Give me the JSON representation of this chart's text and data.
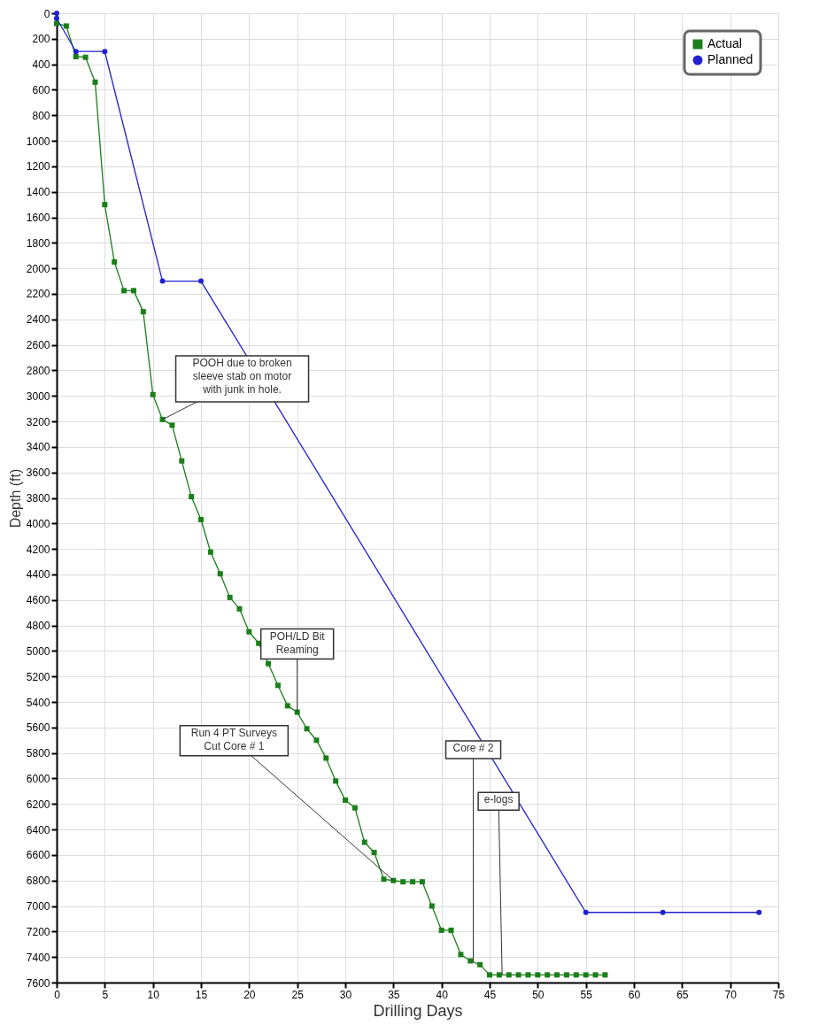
{
  "chart_data": {
    "type": "line",
    "xlabel": "Drilling Days",
    "ylabel": "Depth (ft)",
    "xlim": [
      0,
      75
    ],
    "xticks": [
      0,
      5,
      10,
      15,
      20,
      25,
      30,
      35,
      40,
      45,
      50,
      55,
      60,
      65,
      70,
      75
    ],
    "ylim": [
      7600,
      0
    ],
    "yticks": [
      0,
      200,
      400,
      600,
      800,
      1000,
      1200,
      1400,
      1600,
      1800,
      2000,
      2200,
      2400,
      2600,
      2800,
      3000,
      3200,
      3400,
      3600,
      3800,
      4000,
      4200,
      4400,
      4600,
      4800,
      5000,
      5200,
      5400,
      5600,
      5800,
      6000,
      6200,
      6400,
      6600,
      6800,
      7000,
      7200,
      7400,
      7600
    ],
    "grid": true,
    "legend": "top right",
    "line_style": "solid",
    "series": [
      {
        "name": "Actual",
        "color": "#1a7f1a",
        "marker": "square",
        "x": [
          0,
          1,
          2,
          3,
          4,
          5,
          6,
          7,
          8,
          9,
          10,
          11,
          12,
          13,
          14,
          15,
          16,
          17,
          18,
          19,
          20,
          21,
          22,
          23,
          24,
          25,
          26,
          27,
          28,
          29,
          30,
          31,
          32,
          33,
          34,
          35,
          36,
          37,
          38,
          39,
          40,
          41,
          42,
          43,
          44,
          45,
          46,
          47,
          48,
          49,
          50,
          51,
          52,
          53,
          54,
          55,
          56,
          57
        ],
        "values": [
          80,
          100,
          340,
          345,
          540,
          1500,
          1950,
          2175,
          2175,
          2340,
          2990,
          3185,
          3230,
          3510,
          3790,
          3970,
          4225,
          4395,
          4580,
          4670,
          4850,
          4940,
          5100,
          5270,
          5430,
          5480,
          5610,
          5700,
          5840,
          6020,
          6170,
          6230,
          6500,
          6580,
          6790,
          6800,
          6810,
          6810,
          6810,
          7000,
          7190,
          7190,
          7380,
          7430,
          7460,
          7540,
          7540,
          7540,
          7540,
          7540,
          7540,
          7540,
          7540,
          7540,
          7540,
          7540,
          7540,
          7540
        ]
      },
      {
        "name": "Planned",
        "color": "#2020d0",
        "marker": "circle",
        "x": [
          0,
          0,
          2,
          5,
          11,
          15,
          55,
          63,
          73
        ],
        "values": [
          0,
          40,
          300,
          300,
          2100,
          2100,
          7050,
          7050,
          7050
        ]
      }
    ],
    "annotations": [
      {
        "text": "POOH due to broken\nsleeve stab on motor\nwith junk in hole.",
        "x": 11,
        "y": 3185
      },
      {
        "text": "POH/LD Bit\nReaming",
        "x": 25,
        "y": 5480
      },
      {
        "text": "Run 4 PT Surveys\nCut Core # 1",
        "x": 35,
        "y": 6800
      },
      {
        "text": "Core # 2",
        "x": 43.3,
        "y": 7440
      },
      {
        "text": "e-logs",
        "x": 46.3,
        "y": 7540
      }
    ]
  }
}
